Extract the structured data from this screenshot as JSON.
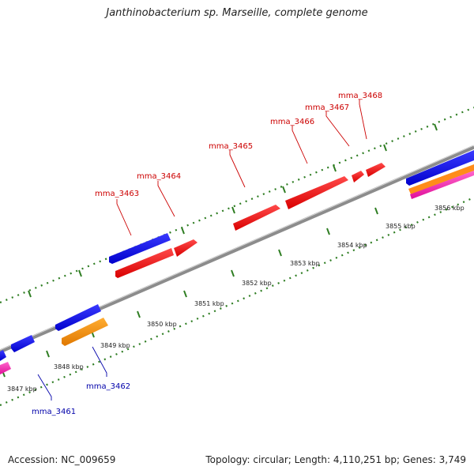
{
  "title": "Janthinobacterium sp. Marseille, complete genome",
  "footer": {
    "accession": "Accession: NC_009659",
    "stats": "Topology: circular; Length: 4,110,251 bp; Genes: 3,749"
  },
  "colors": {
    "forward_label": "#cc0000",
    "reverse_label": "#0000aa",
    "backbone": "#8c8c8c",
    "tick": "#2e7d22"
  },
  "kbp_labels": [
    "3847 kbp",
    "3848 kbp",
    "3849 kbp",
    "3850 kbp",
    "3851 kbp",
    "3852 kbp",
    "3853 kbp",
    "3854 kbp",
    "3855 kbp",
    "3856 kbp"
  ],
  "gene_labels": {
    "forward": [
      "mma_3463",
      "mma_3464",
      "mma_3465",
      "mma_3466",
      "mma_3467",
      "mma_3468"
    ],
    "reverse": [
      "mma_3461",
      "mma_3462"
    ]
  }
}
